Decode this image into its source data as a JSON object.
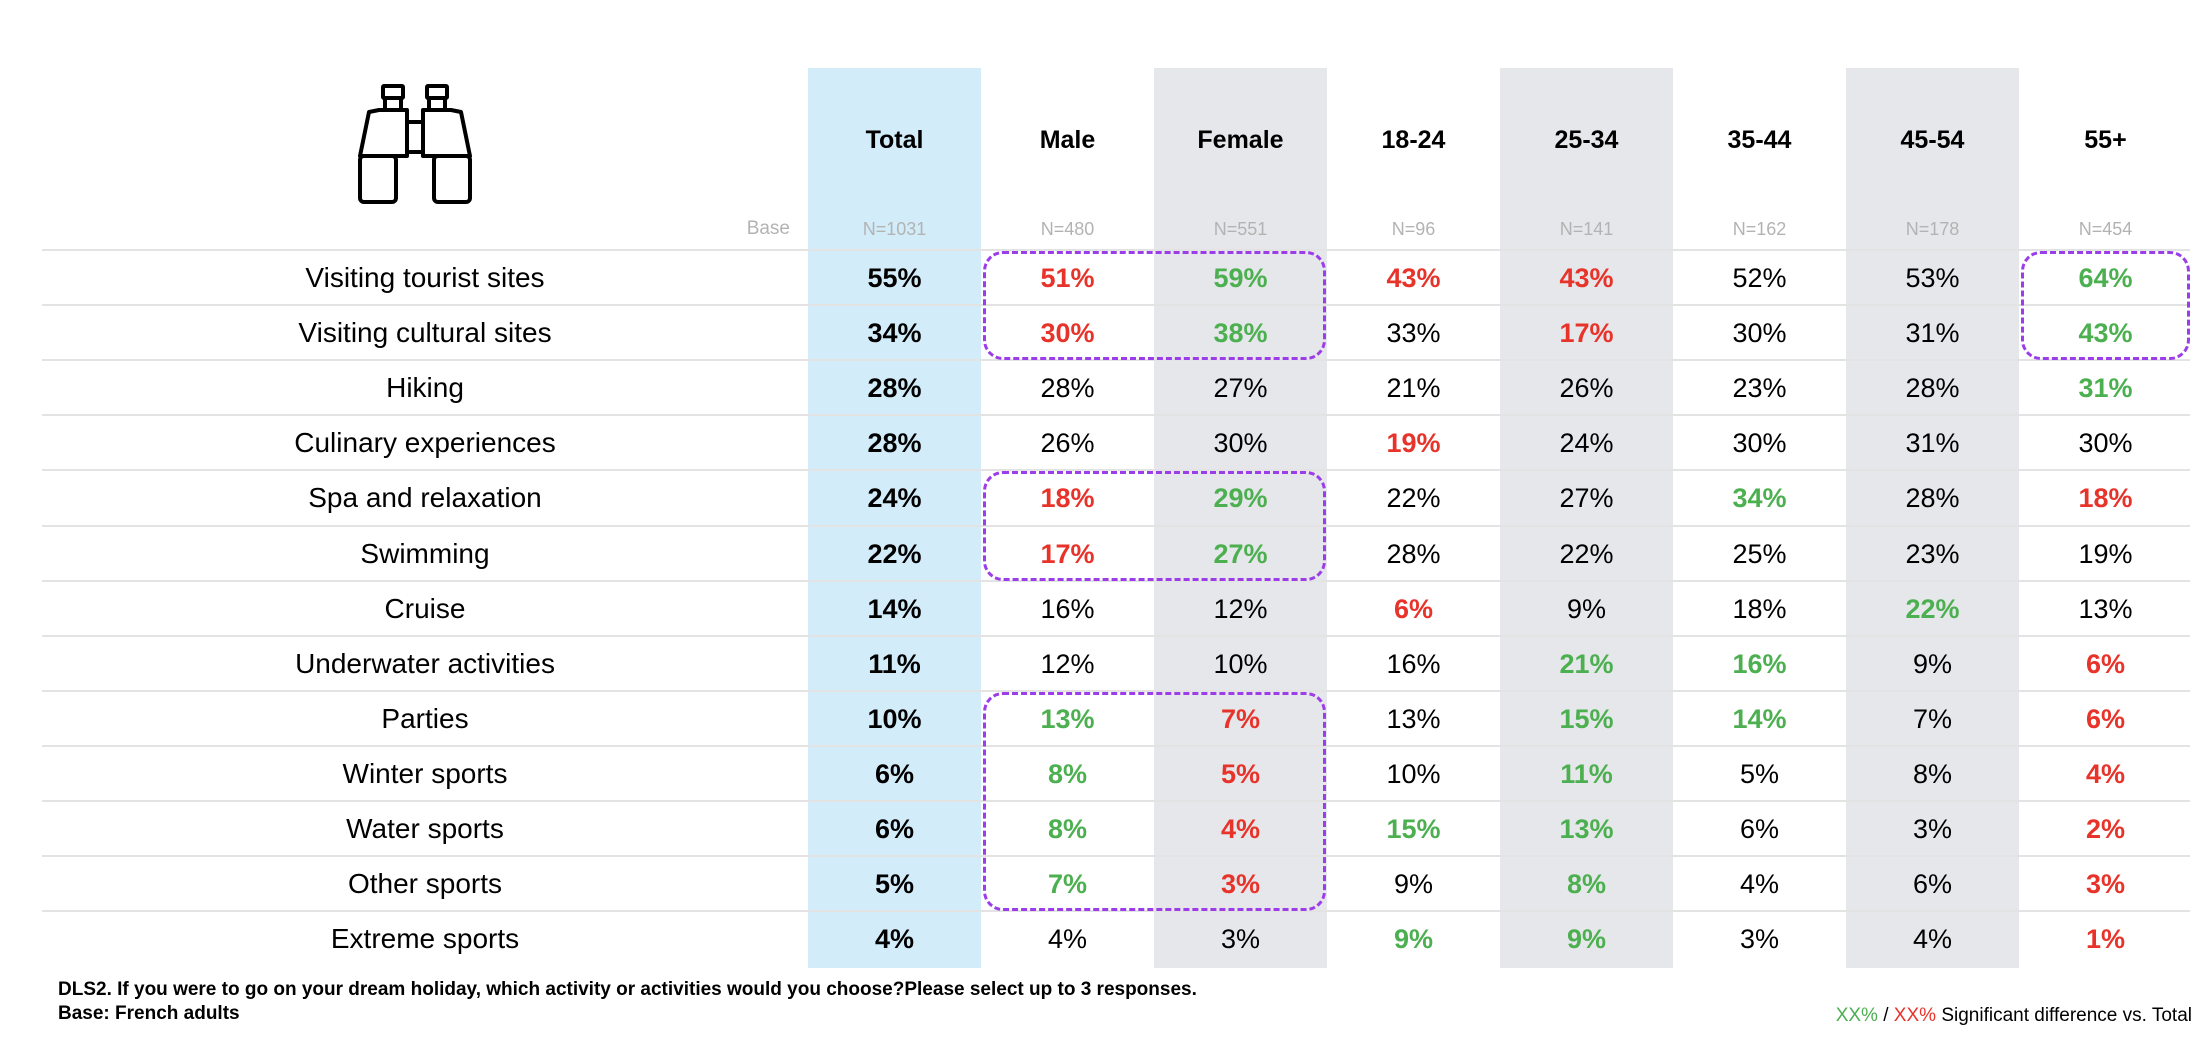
{
  "icon": "binoculars-icon",
  "colors": {
    "significant_higher": "#4caf50",
    "significant_lower": "#e8332a",
    "total_column_bg": "#d2ecf9",
    "alternate_column_bg": "#e6e7ea",
    "highlight_outline": "#9b3de8"
  },
  "base_label": "Base",
  "footnote": {
    "question": "DLS2. If you were to go on your dream holiday, which activity or activities would you choose?Please select up to 3 responses.",
    "base": "Base: French adults"
  },
  "legend": {
    "green_sample": "XX%",
    "separator": " / ",
    "red_sample": "XX%",
    "text": " Significant difference vs. Total"
  },
  "chart_data": {
    "type": "table",
    "unit": "%",
    "columns": [
      {
        "label": "Total",
        "base": "N=1031",
        "bg": "blue"
      },
      {
        "label": "Male",
        "base": "N=480",
        "bg": "none"
      },
      {
        "label": "Female",
        "base": "N=551",
        "bg": "grey"
      },
      {
        "label": "18-24",
        "base": "N=96",
        "bg": "none"
      },
      {
        "label": "25-34",
        "base": "N=141",
        "bg": "grey"
      },
      {
        "label": "35-44",
        "base": "N=162",
        "bg": "none"
      },
      {
        "label": "45-54",
        "base": "N=178",
        "bg": "grey"
      },
      {
        "label": "55+",
        "base": "N=454",
        "bg": "none"
      }
    ],
    "rows": [
      {
        "label": "Visiting tourist sites",
        "values": [
          55,
          51,
          59,
          43,
          43,
          52,
          53,
          64
        ],
        "sig": [
          "",
          "low",
          "high",
          "low",
          "low",
          "",
          "",
          "high"
        ]
      },
      {
        "label": "Visiting cultural sites",
        "values": [
          34,
          30,
          38,
          33,
          17,
          30,
          31,
          43
        ],
        "sig": [
          "",
          "low",
          "high",
          "",
          "low",
          "",
          "",
          "high"
        ]
      },
      {
        "label": "Hiking",
        "values": [
          28,
          28,
          27,
          21,
          26,
          23,
          28,
          31
        ],
        "sig": [
          "",
          "",
          "",
          "",
          "",
          "",
          "",
          "high"
        ]
      },
      {
        "label": "Culinary experiences",
        "values": [
          28,
          26,
          30,
          19,
          24,
          30,
          31,
          30
        ],
        "sig": [
          "",
          "",
          "",
          "low",
          "",
          "",
          "",
          ""
        ]
      },
      {
        "label": "Spa and relaxation",
        "values": [
          24,
          18,
          29,
          22,
          27,
          34,
          28,
          18
        ],
        "sig": [
          "",
          "low",
          "high",
          "",
          "",
          "high",
          "",
          "low"
        ]
      },
      {
        "label": "Swimming",
        "values": [
          22,
          17,
          27,
          28,
          22,
          25,
          23,
          19
        ],
        "sig": [
          "",
          "low",
          "high",
          "",
          "",
          "",
          "",
          ""
        ]
      },
      {
        "label": "Cruise",
        "values": [
          14,
          16,
          12,
          6,
          9,
          18,
          22,
          13
        ],
        "sig": [
          "",
          "",
          "",
          "low",
          "",
          "",
          "high",
          ""
        ]
      },
      {
        "label": "Underwater activities",
        "values": [
          11,
          12,
          10,
          16,
          21,
          16,
          9,
          6
        ],
        "sig": [
          "",
          "",
          "",
          "",
          "high",
          "high",
          "",
          "low"
        ]
      },
      {
        "label": "Parties",
        "values": [
          10,
          13,
          7,
          13,
          15,
          14,
          7,
          6
        ],
        "sig": [
          "",
          "high",
          "low",
          "",
          "high",
          "high",
          "",
          "low"
        ]
      },
      {
        "label": "Winter sports",
        "values": [
          6,
          8,
          5,
          10,
          11,
          5,
          8,
          4
        ],
        "sig": [
          "",
          "high",
          "low",
          "",
          "high",
          "",
          "",
          "low"
        ]
      },
      {
        "label": "Water sports",
        "values": [
          6,
          8,
          4,
          15,
          13,
          6,
          3,
          2
        ],
        "sig": [
          "",
          "high",
          "low",
          "high",
          "high",
          "",
          "",
          "low"
        ]
      },
      {
        "label": "Other sports",
        "values": [
          5,
          7,
          3,
          9,
          8,
          4,
          6,
          3
        ],
        "sig": [
          "",
          "high",
          "low",
          "",
          "high",
          "",
          "",
          "low"
        ]
      },
      {
        "label": "Extreme sports",
        "values": [
          4,
          4,
          3,
          9,
          9,
          3,
          4,
          1
        ],
        "sig": [
          "",
          "",
          "",
          "high",
          "high",
          "",
          "",
          "low"
        ]
      }
    ],
    "highlight_groups": [
      {
        "rows": [
          0,
          1
        ],
        "cols": [
          1,
          2
        ]
      },
      {
        "rows": [
          0,
          1
        ],
        "cols": [
          7,
          7
        ]
      },
      {
        "rows": [
          4,
          5
        ],
        "cols": [
          1,
          2
        ]
      },
      {
        "rows": [
          8,
          11
        ],
        "cols": [
          1,
          2
        ]
      }
    ]
  }
}
